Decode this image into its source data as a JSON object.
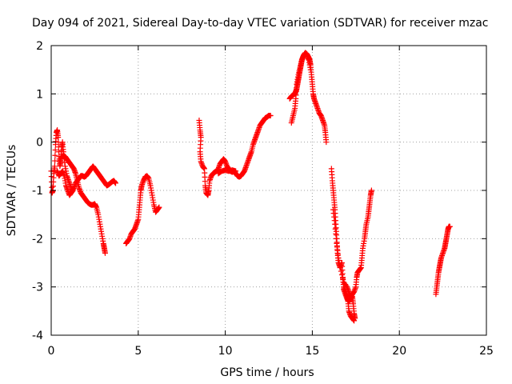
{
  "chart_data": {
    "type": "scatter",
    "title": "Day 094 of 2021, Sidereal Day-to-day VTEC variation (SDTVAR) for receiver mzac",
    "xlabel": "GPS time / hours",
    "ylabel": "SDTVAR / TECUs",
    "xlim": [
      0,
      25
    ],
    "ylim": [
      -4,
      2
    ],
    "xticks": [
      0,
      5,
      10,
      15,
      20,
      25
    ],
    "xtick_labels": [
      "0",
      "5",
      "10",
      "15",
      "20",
      "25"
    ],
    "yticks": [
      -4,
      -3,
      -2,
      -1,
      0,
      1,
      2
    ],
    "ytick_labels": [
      "-4",
      "-3",
      "-2",
      "-1",
      "0",
      "1",
      "2"
    ],
    "grid": true,
    "legend": "none",
    "marker": "plus",
    "colors": {
      "series": "#ff0000",
      "axis": "#000000",
      "grid": "#a0a0a0"
    },
    "series": [
      {
        "segments": [
          [
            [
              0.0,
              -0.6
            ],
            [
              0.05,
              -1.05
            ],
            [
              0.1,
              -1.0
            ],
            [
              0.15,
              -0.65
            ],
            [
              0.2,
              -0.5
            ],
            [
              0.25,
              -0.05
            ],
            [
              0.3,
              0.2
            ],
            [
              0.35,
              0.25
            ],
            [
              0.4,
              0.1
            ],
            [
              0.45,
              -0.3
            ],
            [
              0.5,
              -0.5
            ],
            [
              0.55,
              -0.4
            ],
            [
              0.6,
              -0.1
            ],
            [
              0.65,
              0.0
            ],
            [
              0.7,
              -0.2
            ],
            [
              0.8,
              -0.5
            ],
            [
              0.9,
              -0.7
            ],
            [
              1.0,
              -0.8
            ],
            [
              1.1,
              -0.9
            ],
            [
              1.2,
              -1.0
            ],
            [
              1.3,
              -0.95
            ],
            [
              1.4,
              -0.85
            ],
            [
              1.5,
              -0.8
            ],
            [
              1.6,
              -0.75
            ],
            [
              1.7,
              -0.7
            ],
            [
              1.8,
              -0.7
            ],
            [
              1.9,
              -0.72
            ],
            [
              2.0,
              -0.7
            ],
            [
              2.1,
              -0.65
            ],
            [
              2.2,
              -0.6
            ],
            [
              2.3,
              -0.55
            ],
            [
              2.4,
              -0.5
            ],
            [
              2.5,
              -0.55
            ],
            [
              2.6,
              -0.6
            ],
            [
              2.7,
              -0.65
            ],
            [
              2.8,
              -0.7
            ],
            [
              2.9,
              -0.75
            ],
            [
              3.0,
              -0.8
            ],
            [
              3.1,
              -0.85
            ],
            [
              3.2,
              -0.9
            ],
            [
              3.3,
              -0.88
            ],
            [
              3.4,
              -0.85
            ],
            [
              3.5,
              -0.82
            ],
            [
              3.6,
              -0.8
            ],
            [
              3.7,
              -0.85
            ]
          ],
          [
            [
              0.5,
              -0.4
            ],
            [
              0.6,
              -0.3
            ],
            [
              0.7,
              -0.28
            ],
            [
              0.8,
              -0.3
            ],
            [
              0.9,
              -0.35
            ],
            [
              1.0,
              -0.4
            ],
            [
              1.1,
              -0.45
            ],
            [
              1.2,
              -0.5
            ],
            [
              1.3,
              -0.55
            ],
            [
              1.4,
              -0.65
            ],
            [
              1.5,
              -0.8
            ],
            [
              1.6,
              -0.95
            ],
            [
              1.7,
              -1.05
            ],
            [
              1.8,
              -1.1
            ],
            [
              1.9,
              -1.15
            ],
            [
              2.0,
              -1.2
            ],
            [
              2.1,
              -1.25
            ],
            [
              2.2,
              -1.28
            ],
            [
              2.3,
              -1.3
            ],
            [
              2.4,
              -1.3
            ],
            [
              2.5,
              -1.28
            ],
            [
              2.6,
              -1.35
            ],
            [
              2.7,
              -1.5
            ],
            [
              2.8,
              -1.7
            ],
            [
              2.9,
              -1.9
            ],
            [
              3.0,
              -2.1
            ],
            [
              3.05,
              -2.2
            ],
            [
              3.1,
              -2.3
            ]
          ],
          [
            [
              0.35,
              -0.6
            ],
            [
              0.45,
              -0.7
            ],
            [
              0.55,
              -0.65
            ],
            [
              0.65,
              -0.6
            ],
            [
              0.75,
              -0.7
            ],
            [
              0.85,
              -0.9
            ],
            [
              0.95,
              -1.0
            ],
            [
              1.05,
              -1.1
            ],
            [
              1.15,
              -1.05
            ],
            [
              1.25,
              -1.0
            ]
          ],
          [
            [
              4.3,
              -2.1
            ],
            [
              4.4,
              -2.05
            ],
            [
              4.5,
              -2.0
            ],
            [
              4.6,
              -1.9
            ],
            [
              4.7,
              -1.85
            ],
            [
              4.8,
              -1.8
            ],
            [
              4.9,
              -1.7
            ],
            [
              5.0,
              -1.6
            ],
            [
              5.05,
              -1.4
            ],
            [
              5.1,
              -1.2
            ],
            [
              5.15,
              -1.0
            ],
            [
              5.2,
              -0.9
            ],
            [
              5.3,
              -0.8
            ],
            [
              5.4,
              -0.72
            ],
            [
              5.5,
              -0.7
            ],
            [
              5.6,
              -0.75
            ],
            [
              5.7,
              -0.9
            ],
            [
              5.8,
              -1.1
            ],
            [
              5.9,
              -1.3
            ],
            [
              6.0,
              -1.45
            ],
            [
              6.1,
              -1.4
            ],
            [
              6.2,
              -1.35
            ]
          ],
          [
            [
              8.5,
              0.45
            ],
            [
              8.55,
              0.25
            ],
            [
              8.6,
              0.1
            ],
            [
              8.55,
              -0.2
            ],
            [
              8.6,
              -0.4
            ],
            [
              8.7,
              -0.5
            ],
            [
              8.8,
              -0.55
            ],
            [
              8.85,
              -0.9
            ],
            [
              8.9,
              -1.05
            ],
            [
              9.0,
              -1.1
            ],
            [
              9.05,
              -1.0
            ],
            [
              9.1,
              -0.8
            ],
            [
              9.2,
              -0.7
            ],
            [
              9.3,
              -0.65
            ],
            [
              9.4,
              -0.62
            ],
            [
              9.5,
              -0.6
            ],
            [
              9.6,
              -0.55
            ],
            [
              9.7,
              -0.45
            ],
            [
              9.8,
              -0.4
            ],
            [
              9.9,
              -0.35
            ],
            [
              10.0,
              -0.4
            ],
            [
              10.1,
              -0.5
            ],
            [
              10.2,
              -0.55
            ],
            [
              10.3,
              -0.6
            ],
            [
              10.4,
              -0.62
            ],
            [
              10.5,
              -0.6
            ],
            [
              10.6,
              -0.65
            ],
            [
              10.7,
              -0.7
            ],
            [
              10.8,
              -0.72
            ],
            [
              10.9,
              -0.7
            ],
            [
              11.0,
              -0.65
            ],
            [
              11.1,
              -0.6
            ],
            [
              11.2,
              -0.5
            ],
            [
              11.3,
              -0.4
            ],
            [
              11.4,
              -0.3
            ],
            [
              11.5,
              -0.2
            ],
            [
              11.6,
              -0.05
            ],
            [
              11.7,
              0.05
            ],
            [
              11.8,
              0.15
            ],
            [
              11.9,
              0.25
            ],
            [
              12.0,
              0.35
            ],
            [
              12.1,
              0.4
            ],
            [
              12.2,
              0.45
            ],
            [
              12.3,
              0.5
            ],
            [
              12.4,
              0.52
            ],
            [
              12.5,
              0.55
            ],
            [
              12.6,
              0.55
            ]
          ],
          [
            [
              9.6,
              -0.65
            ],
            [
              9.8,
              -0.6
            ],
            [
              10.0,
              -0.58
            ],
            [
              10.2,
              -0.6
            ],
            [
              10.4,
              -0.58
            ],
            [
              10.6,
              -0.6
            ]
          ],
          [
            [
              13.7,
              0.9
            ],
            [
              13.8,
              0.95
            ],
            [
              13.9,
              0.98
            ],
            [
              14.0,
              1.0
            ],
            [
              14.05,
              1.05
            ],
            [
              14.1,
              1.1
            ],
            [
              14.15,
              1.2
            ],
            [
              14.2,
              1.3
            ],
            [
              14.25,
              1.4
            ],
            [
              14.3,
              1.5
            ],
            [
              14.35,
              1.6
            ],
            [
              14.4,
              1.7
            ],
            [
              14.45,
              1.75
            ],
            [
              14.5,
              1.8
            ],
            [
              14.6,
              1.85
            ],
            [
              14.7,
              1.82
            ],
            [
              14.8,
              1.75
            ],
            [
              14.85,
              1.7
            ],
            [
              14.9,
              1.6
            ],
            [
              14.95,
              1.4
            ],
            [
              15.0,
              1.2
            ],
            [
              15.05,
              1.0
            ],
            [
              15.1,
              0.9
            ],
            [
              15.2,
              0.8
            ],
            [
              15.3,
              0.7
            ],
            [
              15.4,
              0.6
            ],
            [
              15.5,
              0.55
            ],
            [
              15.6,
              0.45
            ],
            [
              15.7,
              0.35
            ],
            [
              15.75,
              0.2
            ],
            [
              15.8,
              0.0
            ]
          ],
          [
            [
              13.8,
              0.4
            ],
            [
              13.9,
              0.55
            ],
            [
              14.0,
              0.7
            ],
            [
              14.05,
              0.9
            ],
            [
              14.1,
              1.2
            ],
            [
              14.2,
              1.4
            ],
            [
              14.3,
              1.55
            ],
            [
              14.4,
              1.7
            ],
            [
              14.5,
              1.8
            ],
            [
              14.6,
              1.85
            ],
            [
              14.7,
              1.8
            ],
            [
              14.8,
              1.7
            ],
            [
              14.9,
              1.5
            ]
          ],
          [
            [
              16.1,
              -0.55
            ],
            [
              16.15,
              -0.8
            ],
            [
              16.2,
              -1.0
            ],
            [
              16.25,
              -1.2
            ],
            [
              16.3,
              -1.4
            ],
            [
              16.35,
              -1.7
            ],
            [
              16.4,
              -2.0
            ],
            [
              16.45,
              -2.3
            ],
            [
              16.5,
              -2.5
            ],
            [
              16.6,
              -2.6
            ],
            [
              16.7,
              -2.5
            ],
            [
              16.75,
              -2.8
            ],
            [
              16.8,
              -3.0
            ],
            [
              16.9,
              -3.1
            ],
            [
              17.0,
              -3.2
            ],
            [
              17.05,
              -3.3
            ],
            [
              17.1,
              -3.5
            ],
            [
              17.2,
              -3.6
            ],
            [
              17.3,
              -3.65
            ],
            [
              17.4,
              -3.7
            ]
          ],
          [
            [
              16.2,
              -1.4
            ],
            [
              16.3,
              -1.7
            ],
            [
              16.4,
              -2.1
            ],
            [
              16.5,
              -2.4
            ],
            [
              16.6,
              -2.6
            ],
            [
              16.8,
              -2.9
            ],
            [
              17.0,
              -3.0
            ],
            [
              17.1,
              -3.1
            ],
            [
              17.2,
              -3.2
            ],
            [
              17.3,
              -3.15
            ],
            [
              17.4,
              -3.1
            ],
            [
              17.5,
              -3.0
            ],
            [
              17.55,
              -2.8
            ],
            [
              17.6,
              -2.7
            ],
            [
              17.7,
              -2.65
            ],
            [
              17.8,
              -2.6
            ],
            [
              17.85,
              -2.4
            ],
            [
              17.9,
              -2.2
            ],
            [
              18.0,
              -2.0
            ],
            [
              18.05,
              -1.85
            ],
            [
              18.1,
              -1.7
            ],
            [
              18.2,
              -1.55
            ],
            [
              18.25,
              -1.4
            ],
            [
              18.3,
              -1.25
            ],
            [
              18.35,
              -1.1
            ],
            [
              18.4,
              -1.0
            ]
          ],
          [
            [
              16.8,
              -3.05
            ],
            [
              16.9,
              -3.15
            ],
            [
              17.0,
              -3.25
            ],
            [
              17.1,
              -3.3
            ],
            [
              17.2,
              -3.25
            ],
            [
              17.3,
              -3.2
            ],
            [
              17.35,
              -3.35
            ],
            [
              17.4,
              -3.55
            ],
            [
              17.45,
              -3.65
            ]
          ],
          [
            [
              22.1,
              -3.15
            ],
            [
              22.15,
              -3.0
            ],
            [
              22.2,
              -2.85
            ],
            [
              22.25,
              -2.7
            ],
            [
              22.3,
              -2.6
            ],
            [
              22.35,
              -2.5
            ],
            [
              22.4,
              -2.4
            ],
            [
              22.5,
              -2.3
            ],
            [
              22.6,
              -2.2
            ],
            [
              22.65,
              -2.1
            ],
            [
              22.7,
              -2.0
            ],
            [
              22.75,
              -1.9
            ],
            [
              22.8,
              -1.8
            ],
            [
              22.85,
              -1.75
            ],
            [
              22.9,
              -1.75
            ]
          ]
        ]
      }
    ]
  }
}
